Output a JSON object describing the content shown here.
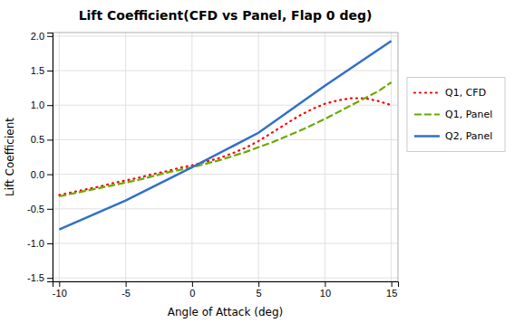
{
  "chart_data": {
    "type": "line",
    "title": "Lift Coefficient(CFD vs Panel, Flap 0 deg)",
    "x_label": "Angle of Attack (deg)",
    "y_label": "Lift Coefficient",
    "xlim": [
      -10.5,
      15.5
    ],
    "ylim": [
      -1.55,
      2.05
    ],
    "xticks": [
      -10,
      -5,
      0,
      5,
      10,
      15
    ],
    "yticks": [
      -1.5,
      {
        "value": -1.0,
        "label": "-1.0"
      },
      -0.5,
      {
        "value": 0.0,
        "label": "0.0"
      },
      0.5,
      {
        "value": 1.0,
        "label": "1.0"
      },
      1.5,
      {
        "value": 2.0,
        "label": "2.0"
      }
    ],
    "grid": true,
    "legend": "right",
    "series": [
      {
        "name": "Q1, CFD",
        "color": "#ff0000",
        "line_style": "dotted",
        "x": [
          -10,
          -9,
          -8,
          -7,
          -6,
          -5,
          -4,
          -3,
          -2,
          -1,
          0,
          1,
          2,
          3,
          4,
          5,
          6,
          7,
          8,
          9,
          10,
          11,
          12,
          13,
          14,
          15
        ],
        "values": [
          -0.3,
          -0.26,
          -0.22,
          -0.18,
          -0.13,
          -0.09,
          -0.05,
          0.0,
          0.04,
          0.09,
          0.13,
          0.18,
          0.23,
          0.3,
          0.38,
          0.48,
          0.6,
          0.72,
          0.84,
          0.94,
          1.02,
          1.07,
          1.1,
          1.1,
          1.06,
          1.0
        ]
      },
      {
        "name": "Q1, Panel",
        "color": "#6aaa00",
        "line_style": "dashed",
        "x": [
          -10,
          -8,
          -6,
          -4,
          -2,
          0,
          2,
          4,
          6,
          8,
          10,
          12,
          14,
          15
        ],
        "values": [
          -0.32,
          -0.24,
          -0.16,
          -0.08,
          0.02,
          0.1,
          0.2,
          0.32,
          0.46,
          0.62,
          0.8,
          1.0,
          1.2,
          1.33
        ]
      },
      {
        "name": "Q2, Panel",
        "color": "#3070c8",
        "line_style": "solid",
        "x": [
          -10,
          -5,
          0,
          5,
          10,
          15
        ],
        "values": [
          -0.8,
          -0.38,
          0.1,
          0.6,
          1.28,
          1.93
        ]
      }
    ]
  }
}
